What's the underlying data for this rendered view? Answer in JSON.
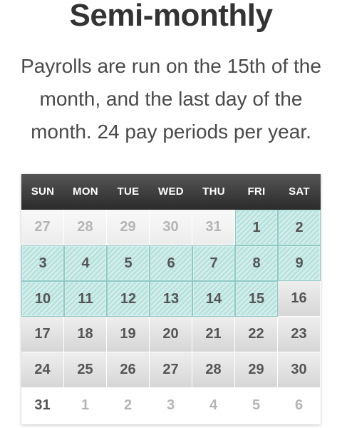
{
  "title": "Semi-monthly",
  "description": {
    "line1": "Payrolls are run on the 15th of the",
    "line2": "month, and the last day of the",
    "line3": "month. 24 pay periods per year."
  },
  "calendar": {
    "weekdays": [
      "SUN",
      "MON",
      "TUE",
      "WED",
      "THU",
      "FRI",
      "SAT"
    ],
    "highlight_color": "#b8e2de",
    "days": [
      {
        "label": "27",
        "current_month": false,
        "pay_period": false
      },
      {
        "label": "28",
        "current_month": false,
        "pay_period": false
      },
      {
        "label": "29",
        "current_month": false,
        "pay_period": false
      },
      {
        "label": "30",
        "current_month": false,
        "pay_period": false
      },
      {
        "label": "31",
        "current_month": false,
        "pay_period": false
      },
      {
        "label": "1",
        "current_month": true,
        "pay_period": true
      },
      {
        "label": "2",
        "current_month": true,
        "pay_period": true
      },
      {
        "label": "3",
        "current_month": true,
        "pay_period": true
      },
      {
        "label": "4",
        "current_month": true,
        "pay_period": true
      },
      {
        "label": "5",
        "current_month": true,
        "pay_period": true
      },
      {
        "label": "6",
        "current_month": true,
        "pay_period": true
      },
      {
        "label": "7",
        "current_month": true,
        "pay_period": true
      },
      {
        "label": "8",
        "current_month": true,
        "pay_period": true
      },
      {
        "label": "9",
        "current_month": true,
        "pay_period": true
      },
      {
        "label": "10",
        "current_month": true,
        "pay_period": true
      },
      {
        "label": "11",
        "current_month": true,
        "pay_period": true
      },
      {
        "label": "12",
        "current_month": true,
        "pay_period": true
      },
      {
        "label": "13",
        "current_month": true,
        "pay_period": true
      },
      {
        "label": "14",
        "current_month": true,
        "pay_period": true
      },
      {
        "label": "15",
        "current_month": true,
        "pay_period": true
      },
      {
        "label": "16",
        "current_month": true,
        "pay_period": false
      },
      {
        "label": "17",
        "current_month": true,
        "pay_period": false
      },
      {
        "label": "18",
        "current_month": true,
        "pay_period": false
      },
      {
        "label": "19",
        "current_month": true,
        "pay_period": false
      },
      {
        "label": "20",
        "current_month": true,
        "pay_period": false
      },
      {
        "label": "21",
        "current_month": true,
        "pay_period": false
      },
      {
        "label": "22",
        "current_month": true,
        "pay_period": false
      },
      {
        "label": "23",
        "current_month": true,
        "pay_period": false
      },
      {
        "label": "24",
        "current_month": true,
        "pay_period": false
      },
      {
        "label": "25",
        "current_month": true,
        "pay_period": false
      },
      {
        "label": "26",
        "current_month": true,
        "pay_period": false
      },
      {
        "label": "27",
        "current_month": true,
        "pay_period": false
      },
      {
        "label": "28",
        "current_month": true,
        "pay_period": false
      },
      {
        "label": "29",
        "current_month": true,
        "pay_period": false
      },
      {
        "label": "30",
        "current_month": true,
        "pay_period": false
      },
      {
        "label": "31",
        "current_month": true,
        "pay_period": false
      },
      {
        "label": "1",
        "current_month": false,
        "pay_period": false
      },
      {
        "label": "2",
        "current_month": false,
        "pay_period": false
      },
      {
        "label": "3",
        "current_month": false,
        "pay_period": false
      },
      {
        "label": "4",
        "current_month": false,
        "pay_period": false
      },
      {
        "label": "5",
        "current_month": false,
        "pay_period": false
      },
      {
        "label": "6",
        "current_month": false,
        "pay_period": false
      }
    ]
  }
}
